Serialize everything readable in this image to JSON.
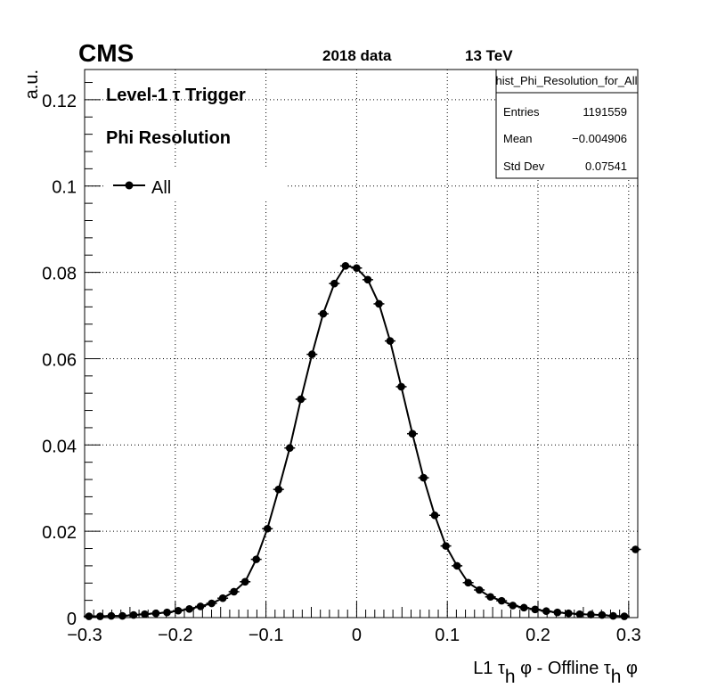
{
  "header": {
    "experiment": "CMS",
    "dataset": "2018 data",
    "energy": "13 TeV"
  },
  "stats_box": {
    "title": "hist_Phi_Resolution_for_All",
    "rows": [
      {
        "label": "Entries",
        "value": "1191559"
      },
      {
        "label": "Mean",
        "value": "−0.004906"
      },
      {
        "label": "Std Dev",
        "value": "0.07541"
      }
    ]
  },
  "chart_data": {
    "type": "scatter",
    "title": "",
    "annotations": [
      "Level-1 τ Trigger",
      "Phi Resolution"
    ],
    "xlabel": "L1 τ_h φ - Offline τ_h φ",
    "ylabel": "a.u.",
    "xlim": [
      -0.3,
      0.31
    ],
    "ylim": [
      0,
      0.127
    ],
    "grid": true,
    "legend_position": "top-left",
    "x_ticks": [
      {
        "value": -0.3,
        "label": "−0.3"
      },
      {
        "value": -0.2,
        "label": "−0.2"
      },
      {
        "value": -0.1,
        "label": "−0.1"
      },
      {
        "value": 0,
        "label": "0"
      },
      {
        "value": 0.1,
        "label": "0.1"
      },
      {
        "value": 0.2,
        "label": "0.2"
      },
      {
        "value": 0.3,
        "label": "0.3"
      }
    ],
    "y_ticks": [
      {
        "value": 0,
        "label": "0"
      },
      {
        "value": 0.02,
        "label": "0.02"
      },
      {
        "value": 0.04,
        "label": "0.04"
      },
      {
        "value": 0.06,
        "label": "0.06"
      },
      {
        "value": 0.08,
        "label": "0.08"
      },
      {
        "value": 0.1,
        "label": "0.1"
      },
      {
        "value": 0.12,
        "label": "0.12"
      }
    ],
    "series": [
      {
        "name": "All",
        "color": "#000000",
        "x": [
          -0.2952,
          -0.2829,
          -0.2706,
          -0.2583,
          -0.246,
          -0.2337,
          -0.2214,
          -0.2091,
          -0.1968,
          -0.1845,
          -0.1722,
          -0.1599,
          -0.1476,
          -0.1353,
          -0.123,
          -0.1107,
          -0.0984,
          -0.0861,
          -0.0738,
          -0.0615,
          -0.0492,
          -0.0369,
          -0.0246,
          -0.0123,
          0.0,
          0.0123,
          0.0246,
          0.0369,
          0.0492,
          0.0615,
          0.0738,
          0.0861,
          0.0984,
          0.1107,
          0.123,
          0.1353,
          0.1476,
          0.1599,
          0.1722,
          0.1845,
          0.1968,
          0.2091,
          0.2214,
          0.2337,
          0.246,
          0.2583,
          0.2706,
          0.2829,
          0.2952,
          0.3075
        ],
        "y": [
          0.0003,
          0.0003,
          0.0004,
          0.0004,
          0.0006,
          0.0008,
          0.001,
          0.0012,
          0.0016,
          0.002,
          0.0026,
          0.0033,
          0.0045,
          0.006,
          0.0083,
          0.0135,
          0.0206,
          0.0297,
          0.0393,
          0.0506,
          0.061,
          0.0704,
          0.0774,
          0.0815,
          0.081,
          0.0783,
          0.0727,
          0.0641,
          0.0535,
          0.0426,
          0.0324,
          0.0237,
          0.0166,
          0.012,
          0.0081,
          0.0064,
          0.0048,
          0.0039,
          0.0028,
          0.0023,
          0.0019,
          0.0015,
          0.0012,
          0.001,
          0.0008,
          0.0007,
          0.0006,
          0.0004,
          0.0003,
          0.0158
        ]
      }
    ]
  }
}
